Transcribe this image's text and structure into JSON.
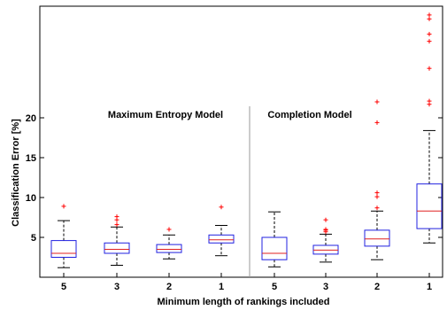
{
  "chart_data": {
    "type": "box",
    "xlabel": "Minimum length of rankings included",
    "ylabel": "Classification Error [%]",
    "ylim": [
      0,
      34
    ],
    "yticks": [
      5,
      10,
      15,
      20
    ],
    "panels": [
      {
        "label": "Maximum Entropy Model"
      },
      {
        "label": "Completion Model"
      }
    ],
    "categories": [
      "5",
      "3",
      "2",
      "1",
      "5",
      "3",
      "2",
      "1"
    ],
    "boxes": [
      {
        "q1": 2.5,
        "median": 3.0,
        "q3": 4.6,
        "whisker_low": 1.2,
        "whisker_high": 7.1,
        "outliers": [
          8.9
        ]
      },
      {
        "q1": 3.0,
        "median": 3.5,
        "q3": 4.3,
        "whisker_low": 1.5,
        "whisker_high": 6.3,
        "outliers": [
          6.6,
          7.2,
          7.6
        ]
      },
      {
        "q1": 3.1,
        "median": 3.5,
        "q3": 4.1,
        "whisker_low": 2.3,
        "whisker_high": 5.3,
        "outliers": [
          6.0
        ]
      },
      {
        "q1": 4.3,
        "median": 4.7,
        "q3": 5.3,
        "whisker_low": 2.7,
        "whisker_high": 6.5,
        "outliers": [
          8.8
        ]
      },
      {
        "q1": 2.2,
        "median": 3.0,
        "q3": 5.0,
        "whisker_low": 1.3,
        "whisker_high": 8.2,
        "outliers": []
      },
      {
        "q1": 2.9,
        "median": 3.4,
        "q3": 4.0,
        "whisker_low": 1.9,
        "whisker_high": 5.4,
        "outliers": [
          5.7,
          5.9,
          6.0,
          7.2
        ]
      },
      {
        "q1": 3.9,
        "median": 4.8,
        "q3": 5.9,
        "whisker_low": 2.2,
        "whisker_high": 8.3,
        "outliers": [
          8.7,
          10.1,
          10.6,
          19.4,
          22.0
        ]
      },
      {
        "q1": 6.1,
        "median": 8.3,
        "q3": 11.7,
        "whisker_low": 4.3,
        "whisker_high": 18.4,
        "outliers": [
          21.7,
          22.1,
          26.2,
          29.6,
          30.5,
          32.4,
          32.9
        ]
      }
    ],
    "colors": {
      "box": "#2020e0",
      "median": "#e02020",
      "whisker": "#000000",
      "outlier": "#ff0000"
    }
  }
}
